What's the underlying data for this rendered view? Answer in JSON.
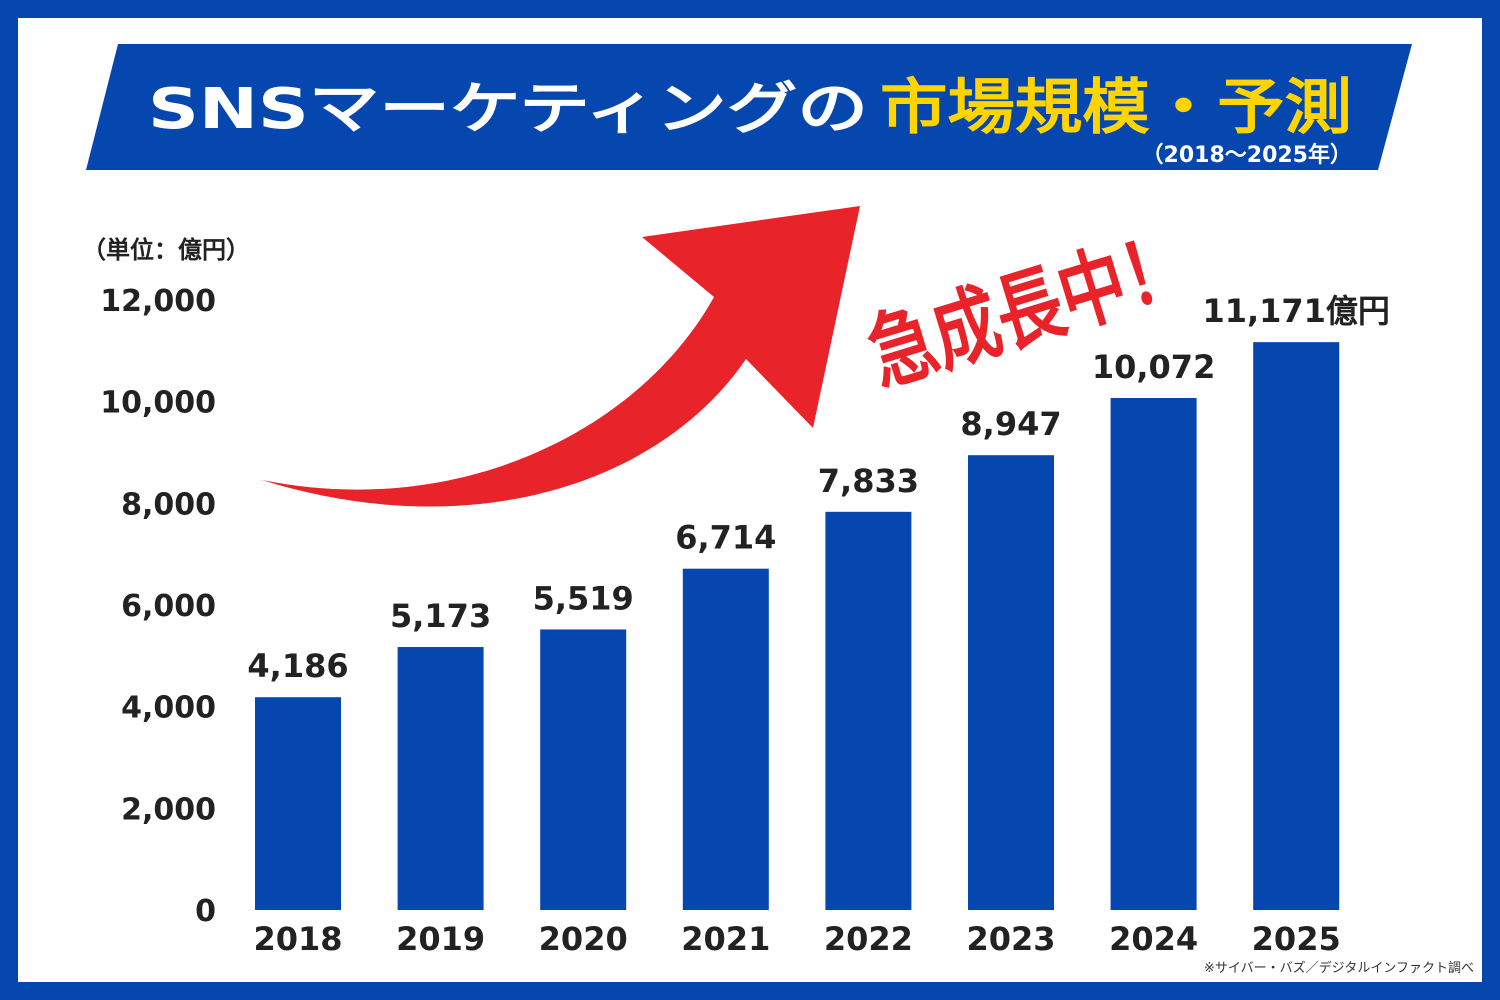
{
  "title": {
    "main": "SNSマーケティングの",
    "highlight": "市場規模・予測",
    "period": "（2018〜2025年）"
  },
  "callout": "急成長中！",
  "unit_label": "（単位：億円）",
  "source": "※サイバー・バズ／デジタルインファクト調べ",
  "colors": {
    "bar": "#0547AE",
    "banner": "#0547AE",
    "highlight": "#FFD400",
    "arrow": "#E8232A",
    "text": "#222222"
  },
  "chart_data": {
    "type": "bar",
    "categories": [
      "2018",
      "2019",
      "2020",
      "2021",
      "2022",
      "2023",
      "2024",
      "2025"
    ],
    "values": [
      4186,
      5173,
      5519,
      6714,
      7833,
      8947,
      10072,
      11171
    ],
    "value_labels": [
      "4,186",
      "5,173",
      "5,519",
      "6,714",
      "7,833",
      "8,947",
      "10,072",
      "11,171億円"
    ],
    "yticks": [
      "0",
      "2,000",
      "4,000",
      "6,000",
      "8,000",
      "10,000",
      "12,000"
    ],
    "ylim": [
      0,
      12000
    ],
    "grid": false,
    "legend": "none"
  }
}
